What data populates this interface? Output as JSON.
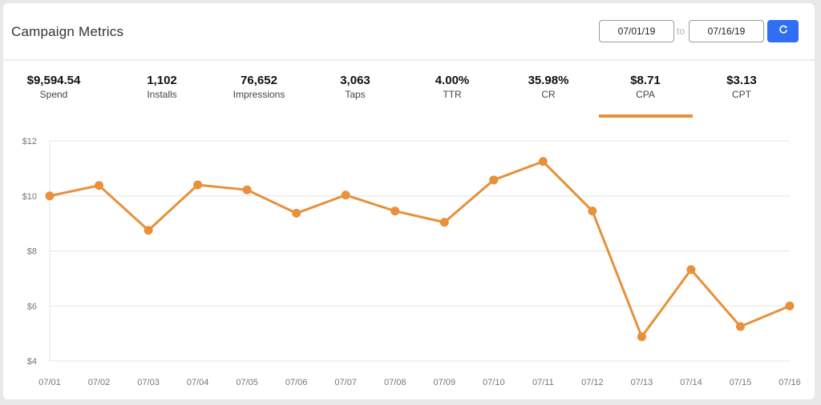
{
  "header": {
    "title": "Campaign Metrics",
    "date_from": "07/01/19",
    "to_label": "to",
    "date_to": "07/16/19",
    "refresh_icon": "refresh-icon"
  },
  "metrics": [
    {
      "value": "$9,594.54",
      "label": "Spend"
    },
    {
      "value": "1,102",
      "label": "Installs"
    },
    {
      "value": "76,652",
      "label": "Impressions"
    },
    {
      "value": "3,063",
      "label": "Taps"
    },
    {
      "value": "4.00%",
      "label": "TTR"
    },
    {
      "value": "35.98%",
      "label": "CR"
    },
    {
      "value": "$8.71",
      "label": "CPA"
    },
    {
      "value": "$3.13",
      "label": "CPT"
    }
  ],
  "active_metric": "CPA",
  "colors": {
    "accent": "#e8903a",
    "button": "#2f6ff6",
    "grid": "#e6e6e6"
  },
  "chart_data": {
    "type": "line",
    "x": [
      "07/01",
      "07/02",
      "07/03",
      "07/04",
      "07/05",
      "07/06",
      "07/07",
      "07/08",
      "07/09",
      "07/10",
      "07/11",
      "07/12",
      "07/13",
      "07/14",
      "07/15",
      "07/16"
    ],
    "series": [
      {
        "values": [
          10.0,
          10.38,
          8.75,
          10.4,
          10.22,
          9.37,
          10.03,
          9.45,
          9.04,
          10.58,
          11.25,
          9.45,
          4.88,
          7.32,
          5.25,
          6.0
        ]
      }
    ],
    "ylim": [
      4,
      12
    ],
    "yticks": [
      4,
      6,
      8,
      10,
      12
    ],
    "ytick_labels": [
      "$4",
      "$6",
      "$8",
      "$10",
      "$12"
    ],
    "grid": true
  }
}
